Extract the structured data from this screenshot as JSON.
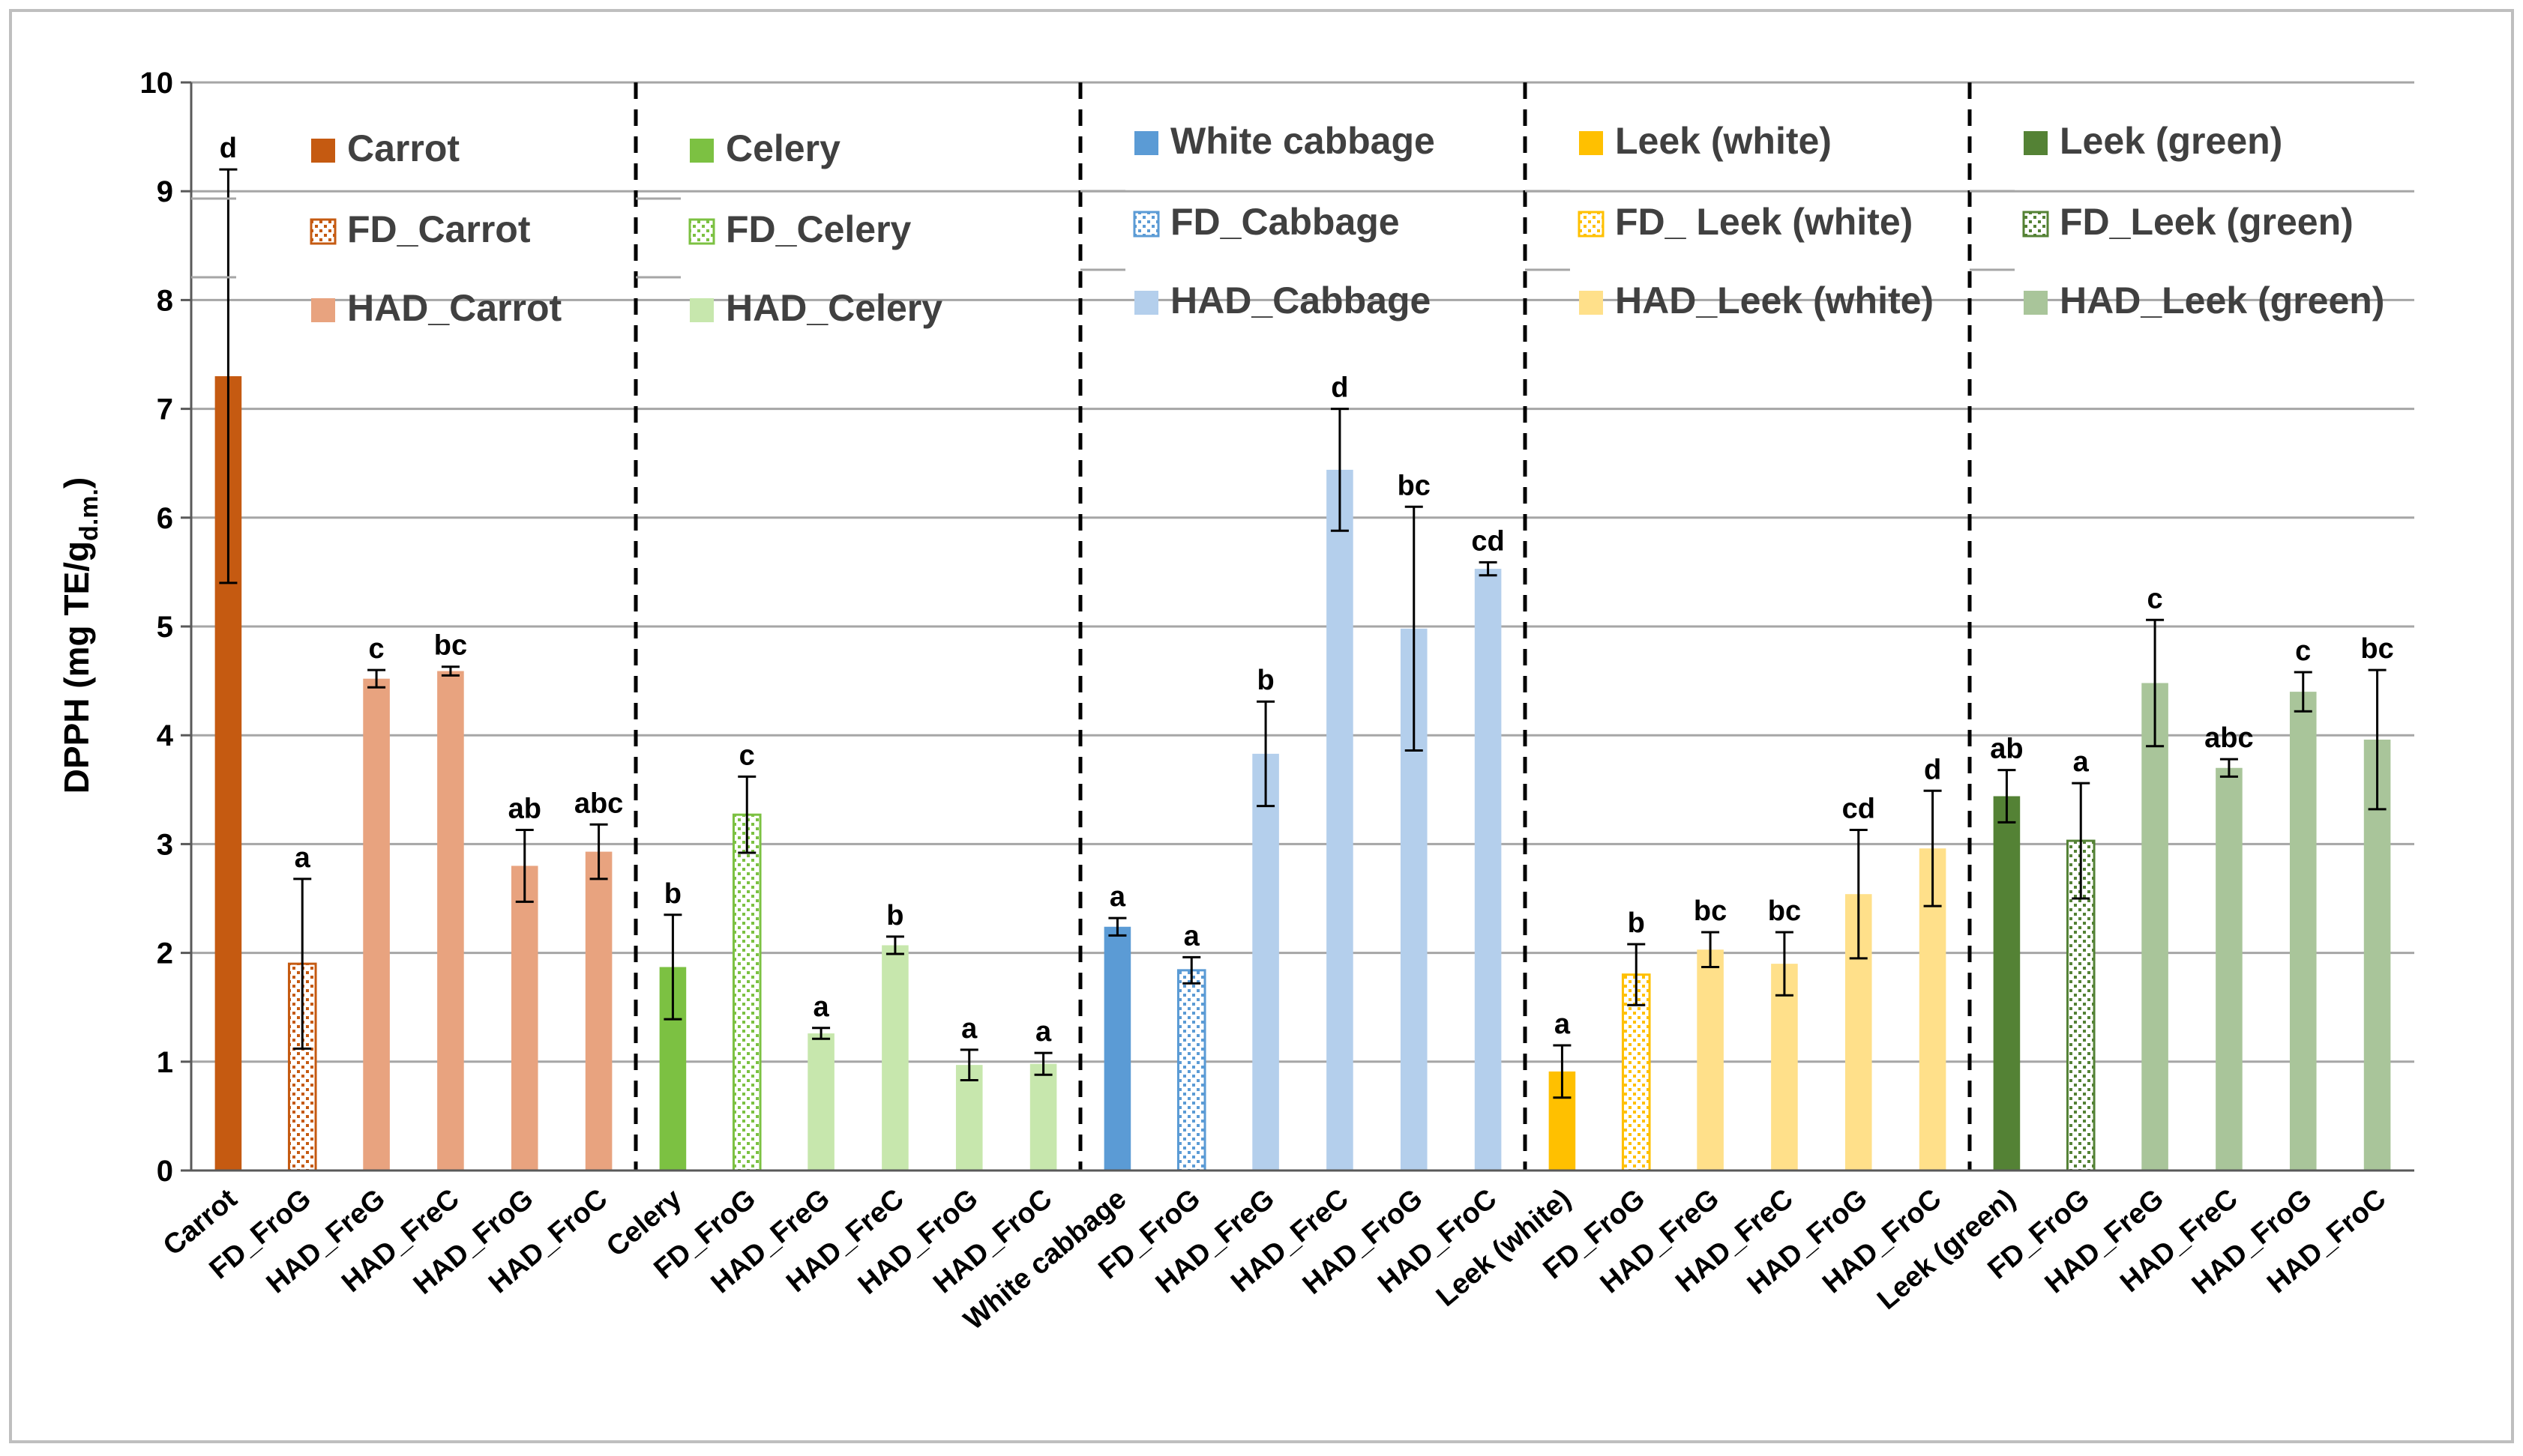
{
  "chart_data": {
    "type": "bar",
    "title": "",
    "xlabel": "",
    "ylabel": {
      "main": "DPPH (mg TE/g",
      "sub": "d.m.",
      "close": ")"
    },
    "ylim": [
      0,
      10
    ],
    "yticks": [
      0,
      1,
      2,
      3,
      4,
      5,
      6,
      7,
      8,
      9,
      10
    ],
    "grid": true,
    "groups": [
      {
        "name": "Carrot",
        "bars": [
          {
            "label": "Carrot",
            "value": 7.3,
            "err": 1.9,
            "letter": "d",
            "color": "#c55a11",
            "style": "solid"
          },
          {
            "label": "FD_FroG",
            "value": 1.9,
            "err": 0.78,
            "letter": "a",
            "color": "#c55a11",
            "style": "pattern"
          },
          {
            "label": "HAD_FreG",
            "value": 4.52,
            "err": 0.08,
            "letter": "c",
            "color": "#e8a37f",
            "style": "light"
          },
          {
            "label": "HAD_FreC",
            "value": 4.59,
            "err": 0.04,
            "letter": "bc",
            "color": "#e8a37f",
            "style": "light"
          },
          {
            "label": "HAD_FroG",
            "value": 2.8,
            "err": 0.33,
            "letter": "ab",
            "color": "#e8a37f",
            "style": "light"
          },
          {
            "label": "HAD_FroC",
            "value": 2.93,
            "err": 0.25,
            "letter": "abc",
            "color": "#e8a37f",
            "style": "light"
          }
        ],
        "legend": [
          "Carrot",
          "FD_Carrot",
          "HAD_Carrot"
        ]
      },
      {
        "name": "Celery",
        "bars": [
          {
            "label": "Celery",
            "value": 1.87,
            "err": 0.48,
            "letter": "b",
            "color": "#7cc142",
            "style": "solid"
          },
          {
            "label": "FD_FroG",
            "value": 3.27,
            "err": 0.35,
            "letter": "c",
            "color": "#7cc142",
            "style": "pattern"
          },
          {
            "label": "HAD_FreG",
            "value": 1.26,
            "err": 0.05,
            "letter": "a",
            "color": "#c7e7ad",
            "style": "light"
          },
          {
            "label": "HAD_FreC",
            "value": 2.07,
            "err": 0.08,
            "letter": "b",
            "color": "#c7e7ad",
            "style": "light"
          },
          {
            "label": "HAD_FroG",
            "value": 0.97,
            "err": 0.14,
            "letter": "a",
            "color": "#c7e7ad",
            "style": "light"
          },
          {
            "label": "HAD_FroC",
            "value": 0.98,
            "err": 0.1,
            "letter": "a",
            "color": "#c7e7ad",
            "style": "light"
          }
        ],
        "legend": [
          "Celery",
          "FD_Celery",
          "HAD_Celery"
        ]
      },
      {
        "name": "White cabbage",
        "bars": [
          {
            "label": "White cabbage",
            "value": 2.24,
            "err": 0.08,
            "letter": "a",
            "color": "#5b9bd5",
            "style": "solid"
          },
          {
            "label": "FD_FroG",
            "value": 1.84,
            "err": 0.12,
            "letter": "a",
            "color": "#5b9bd5",
            "style": "pattern"
          },
          {
            "label": "HAD_FreG",
            "value": 3.83,
            "err": 0.48,
            "letter": "b",
            "color": "#b4cfec",
            "style": "light"
          },
          {
            "label": "HAD_FreC",
            "value": 6.44,
            "err": 0.56,
            "letter": "d",
            "color": "#b4cfec",
            "style": "light"
          },
          {
            "label": "HAD_FroG",
            "value": 4.98,
            "err": 1.12,
            "letter": "bc",
            "color": "#b4cfec",
            "style": "light"
          },
          {
            "label": "HAD_FroC",
            "value": 5.53,
            "err": 0.06,
            "letter": "cd",
            "color": "#b4cfec",
            "style": "light"
          }
        ],
        "legend": [
          "White cabbage",
          "FD_Cabbage",
          "HAD_Cabbage"
        ]
      },
      {
        "name": "Leek (white)",
        "bars": [
          {
            "label": "Leek (white)",
            "value": 0.91,
            "err": 0.24,
            "letter": "a",
            "color": "#ffc000",
            "style": "solid"
          },
          {
            "label": "FD_FroG",
            "value": 1.8,
            "err": 0.28,
            "letter": "b",
            "color": "#ffc000",
            "style": "pattern"
          },
          {
            "label": "HAD_FreG",
            "value": 2.03,
            "err": 0.16,
            "letter": "bc",
            "color": "#ffe08a",
            "style": "light"
          },
          {
            "label": "HAD_FreC",
            "value": 1.9,
            "err": 0.29,
            "letter": "bc",
            "color": "#ffe08a",
            "style": "light"
          },
          {
            "label": "HAD_FroG",
            "value": 2.54,
            "err": 0.59,
            "letter": "cd",
            "color": "#ffe08a",
            "style": "light"
          },
          {
            "label": "HAD_FroC",
            "value": 2.96,
            "err": 0.53,
            "letter": "d",
            "color": "#ffe08a",
            "style": "light"
          }
        ],
        "legend": [
          "Leek (white)",
          "FD_ Leek (white)",
          "HAD_Leek (white)"
        ]
      },
      {
        "name": "Leek (green)",
        "bars": [
          {
            "label": "Leek (green)",
            "value": 3.44,
            "err": 0.24,
            "letter": "ab",
            "color": "#548235",
            "style": "solid"
          },
          {
            "label": "FD_FroG",
            "value": 3.03,
            "err": 0.53,
            "letter": "a",
            "color": "#548235",
            "style": "pattern"
          },
          {
            "label": "HAD_FreG",
            "value": 4.48,
            "err": 0.58,
            "letter": "c",
            "color": "#a9c59a",
            "style": "light"
          },
          {
            "label": "HAD_FreC",
            "value": 3.7,
            "err": 0.08,
            "letter": "abc",
            "color": "#a9c59a",
            "style": "light"
          },
          {
            "label": "HAD_FroG",
            "value": 4.4,
            "err": 0.18,
            "letter": "c",
            "color": "#a9c59a",
            "style": "light"
          },
          {
            "label": "HAD_FroC",
            "value": 3.96,
            "err": 0.64,
            "letter": "bc",
            "color": "#a9c59a",
            "style": "light"
          }
        ],
        "legend": [
          "Leek (green)",
          "FD_Leek (green)",
          "HAD_Leek (green)"
        ]
      }
    ]
  }
}
